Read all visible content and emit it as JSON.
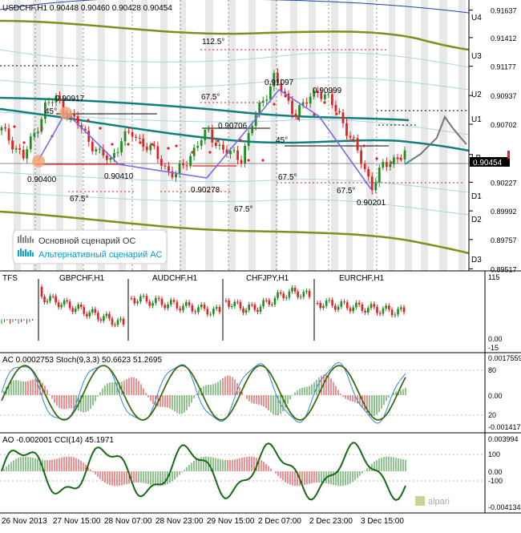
{
  "main": {
    "header": "USDCHF,H1  0.90448 0.90460 0.90428 0.90454",
    "price_labels": [
      "0.91637",
      "0.91412",
      "0.91177",
      "0.90937",
      "0.90702",
      "0.90454",
      "0.90227",
      "0.89992",
      "0.89757",
      "0.89517"
    ],
    "current_price": "0.90454",
    "level_labels": [
      "U4",
      "U3",
      "U2",
      "U1",
      "LB",
      "D1",
      "D2",
      "D3"
    ],
    "angles": [
      "112.5°",
      "67.5°",
      "45°",
      "45°",
      "67.5°",
      "67.5°",
      "67.5°",
      "67.5°",
      "67.5°"
    ],
    "pivots": [
      "0.90917",
      "0.90400",
      "0.90410",
      "0.90278",
      "0.90706",
      "0.91097",
      "0.90999",
      "0.90201"
    ],
    "legend": {
      "main_scenario": "Основной сценарий ОС",
      "alt_scenario": "Альтернативный сценарий АС"
    }
  },
  "panels": [
    {
      "label": "TFS",
      "right_labels": [
        "115",
        "0.00",
        "-15"
      ],
      "sub": [
        "GBPCHF,H1",
        "AUDCHF,H1",
        "CHFJPY,H1",
        "EURCHF,H1"
      ]
    },
    {
      "label": "AC 0.0002753  Stoch(9,3,3) 50.6623 51.2695",
      "right_labels": [
        "0.0017559",
        "80",
        "0.00",
        "20",
        "-0.001417"
      ]
    },
    {
      "label": "AO -0.002001  CCI(14) 45.1971",
      "right_labels": [
        "0.003994",
        "100",
        "0.00",
        "-100",
        "-0.004134"
      ]
    }
  ],
  "x_axis": [
    "26 Nov 2013",
    "27 Nov 15:00",
    "28 Nov 07:00",
    "28 Nov 23:00",
    "29 Nov 15:00",
    "2 Dec 07:00",
    "2 Dec 23:00",
    "3 Dec 15:00"
  ],
  "watermark": "alpari",
  "colors": {
    "bull": "#228b22",
    "bear": "#e32222",
    "ma": "#008b8b",
    "band": "#8b9a1b",
    "wave": "#7b68ee"
  },
  "chart_data": {
    "type": "line",
    "title": "USDCHF,H1",
    "ohlc": {
      "open": 0.90448,
      "high": 0.9046,
      "low": 0.90428,
      "close": 0.90454
    },
    "ylim": [
      0.895,
      0.9172
    ],
    "pivots": [
      {
        "label": "0.90400",
        "value": 0.904
      },
      {
        "label": "0.90917",
        "value": 0.90917
      },
      {
        "label": "0.90410",
        "value": 0.9041
      },
      {
        "label": "0.90278",
        "value": 0.90278
      },
      {
        "label": "0.90706",
        "value": 0.90706
      },
      {
        "label": "0.91097",
        "value": 0.91097
      },
      {
        "label": "0.90999",
        "value": 0.90999
      },
      {
        "label": "0.90201",
        "value": 0.90201
      }
    ],
    "series": [
      {
        "values": [
          0.9065,
          0.9055,
          0.9043,
          0.9062,
          0.9085,
          0.9091,
          0.908,
          0.907,
          0.9058,
          0.9045,
          0.9041,
          0.9058,
          0.9062,
          0.9055,
          0.9047,
          0.9035,
          0.9028,
          0.904,
          0.9055,
          0.9063,
          0.9052,
          0.9045,
          0.9043,
          0.907,
          0.909,
          0.9109,
          0.9092,
          0.908,
          0.9088,
          0.9099,
          0.909,
          0.9078,
          0.906,
          0.904,
          0.902,
          0.9035,
          0.9042,
          0.9046
        ]
      },
      {
        "values": [
          0.9045,
          0.9048,
          0.9062,
          0.9055,
          0.9075,
          0.9068,
          0.9058
        ]
      },
      {
        "values": [
          0.9045,
          0.904,
          0.905,
          0.9062
        ]
      }
    ]
  }
}
